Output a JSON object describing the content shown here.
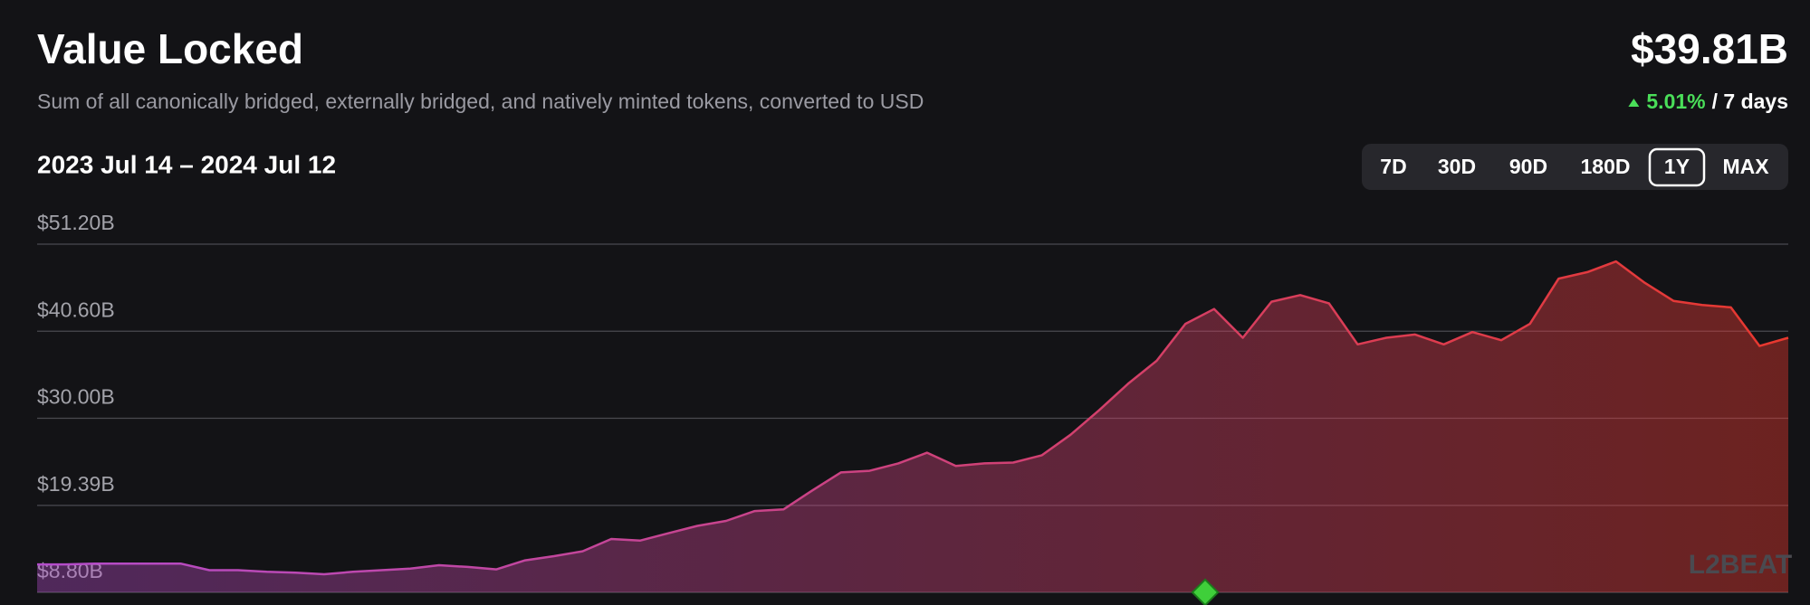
{
  "chart_data": {
    "type": "area",
    "title": "Value Locked",
    "subtitle": "Sum of all canonically bridged, externally bridged, and natively minted tokens, converted to USD",
    "date_range": "2023 Jul 14 – 2024 Jul 12",
    "summary": {
      "value": "$39.81B",
      "change": "5.01%",
      "period": "/ 7 days"
    },
    "range_buttons": [
      "7D",
      "30D",
      "90D",
      "180D",
      "1Y",
      "MAX"
    ],
    "selected_range": "1Y",
    "watermark": "L2BEAT",
    "colors": [
      "#b34ccb",
      "#e8382e"
    ],
    "grid": true,
    "ylim": [
      8.8,
      51.2
    ],
    "yticks": [
      {
        "value": 8.8,
        "label": "$8.80B"
      },
      {
        "value": 19.39,
        "label": "$19.39B"
      },
      {
        "value": 30.0,
        "label": "$30.00B"
      },
      {
        "value": 40.6,
        "label": "$40.60B"
      },
      {
        "value": 51.2,
        "label": "$51.20B"
      }
    ],
    "values": [
      12.2,
      12.2,
      12.3,
      12.3,
      12.3,
      12.3,
      11.5,
      11.5,
      11.3,
      11.2,
      11.0,
      11.3,
      11.5,
      11.7,
      12.1,
      11.9,
      11.6,
      12.7,
      13.2,
      13.8,
      15.3,
      15.1,
      16.0,
      16.9,
      17.5,
      18.7,
      18.9,
      21.2,
      23.4,
      23.6,
      24.5,
      25.8,
      24.2,
      24.5,
      24.6,
      25.5,
      28.0,
      31.0,
      34.2,
      37.0,
      41.5,
      43.3,
      39.8,
      44.2,
      45.0,
      44.0,
      39.0,
      39.8,
      40.2,
      39.0,
      40.5,
      39.5,
      41.5,
      47.0,
      47.8,
      49.1,
      46.5,
      44.3,
      43.8,
      43.5,
      38.8,
      39.8
    ]
  }
}
